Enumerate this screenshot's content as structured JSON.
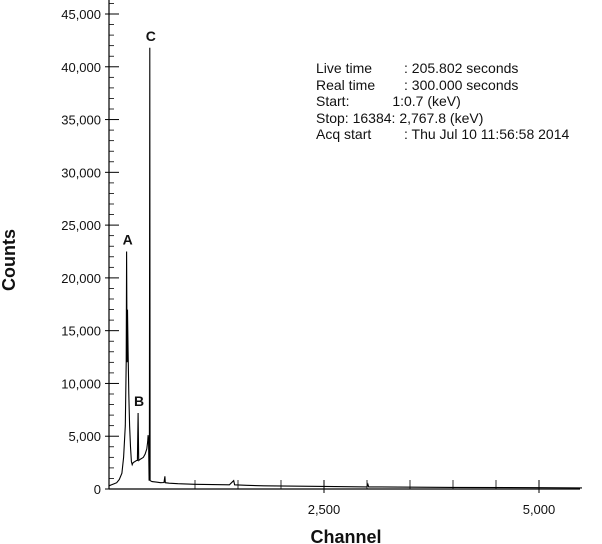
{
  "chart_data": {
    "type": "line",
    "xlabel": "Channel",
    "ylabel": "Counts",
    "xlim": [
      0,
      5500
    ],
    "ylim": [
      0,
      46000
    ],
    "x_ticks": [
      {
        "value": 2500,
        "label": "2,500"
      },
      {
        "value": 5000,
        "label": "5,000"
      }
    ],
    "x_minor_ticks": [
      1000,
      1500,
      2000,
      3000,
      3500,
      4000,
      4500
    ],
    "y_ticks": [
      {
        "value": 0,
        "label": "0"
      },
      {
        "value": 5000,
        "label": "5,000"
      },
      {
        "value": 10000,
        "label": "10,000"
      },
      {
        "value": 15000,
        "label": "15,000"
      },
      {
        "value": 20000,
        "label": "20,000"
      },
      {
        "value": 25000,
        "label": "25,000"
      },
      {
        "value": 30000,
        "label": "30,000"
      },
      {
        "value": 35000,
        "label": "35,000"
      },
      {
        "value": 40000,
        "label": "40,000"
      },
      {
        "value": 45000,
        "label": "45,000"
      }
    ],
    "series": [
      {
        "color": "#000000",
        "points": [
          [
            0,
            300
          ],
          [
            30,
            400
          ],
          [
            60,
            500
          ],
          [
            90,
            600
          ],
          [
            120,
            900
          ],
          [
            150,
            1500
          ],
          [
            170,
            3000
          ],
          [
            190,
            6000
          ],
          [
            200,
            12000
          ],
          [
            205,
            22500
          ],
          [
            210,
            12000
          ],
          [
            215,
            17000
          ],
          [
            222,
            13000
          ],
          [
            230,
            9000
          ],
          [
            240,
            6000
          ],
          [
            250,
            4000
          ],
          [
            260,
            2600
          ],
          [
            270,
            2300
          ],
          [
            280,
            2500
          ],
          [
            300,
            2600
          ],
          [
            320,
            2700
          ],
          [
            330,
            2700
          ],
          [
            338,
            7200
          ],
          [
            345,
            2700
          ],
          [
            360,
            2800
          ],
          [
            380,
            2900
          ],
          [
            400,
            3000
          ],
          [
            420,
            3300
          ],
          [
            440,
            3800
          ],
          [
            450,
            4500
          ],
          [
            455,
            5100
          ],
          [
            460,
            4400
          ],
          [
            466,
            800
          ],
          [
            470,
            5200
          ],
          [
            474,
            41800
          ],
          [
            478,
            800
          ],
          [
            500,
            700
          ],
          [
            550,
            650
          ],
          [
            600,
            600
          ],
          [
            640,
            620
          ],
          [
            650,
            1200
          ],
          [
            655,
            600
          ],
          [
            700,
            550
          ],
          [
            800,
            500
          ],
          [
            1000,
            450
          ],
          [
            1400,
            400
          ],
          [
            1450,
            800
          ],
          [
            1460,
            400
          ],
          [
            1600,
            350
          ],
          [
            1800,
            300
          ],
          [
            2500,
            250
          ],
          [
            3000,
            200
          ],
          [
            3010,
            450
          ],
          [
            3020,
            200
          ],
          [
            4000,
            150
          ],
          [
            5000,
            120
          ],
          [
            5500,
            100
          ]
        ]
      }
    ],
    "annotations": [
      {
        "label": "A",
        "x": 205,
        "y": 22500
      },
      {
        "label": "B",
        "x": 338,
        "y": 7200
      },
      {
        "label": "C",
        "x": 474,
        "y": 41800
      }
    ]
  },
  "info_panel": {
    "live_time_label": "Live time",
    "live_time_value": ": 205.802 seconds",
    "real_time_label": "Real time",
    "real_time_value": ": 300.000 seconds",
    "start_label": "Start:",
    "start_channel": "1:",
    "start_value": "0.7 (keV)",
    "stop_label": "Stop:",
    "stop_channel": "16384:",
    "stop_value": "2,767.8 (keV)",
    "acq_start_label": "Acq start",
    "acq_start_value": ": Thu Jul 10 11:56:58 2014"
  }
}
